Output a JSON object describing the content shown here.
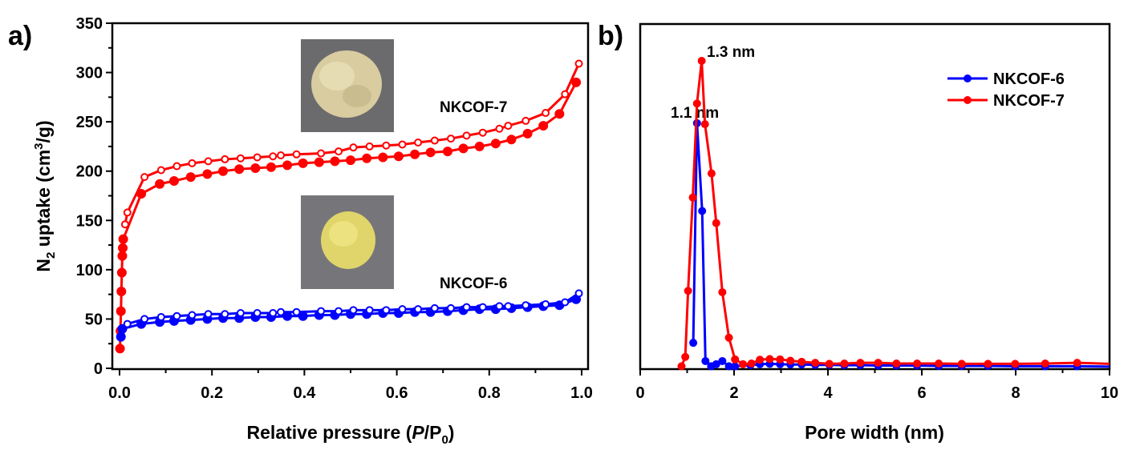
{
  "chart_data": [
    {
      "panel": "a)",
      "type": "line",
      "xlabel": "Relative pressure (P/P0)",
      "xlabel_parts": [
        "Relative pressure (",
        "P",
        "/P",
        "0",
        ")"
      ],
      "ylabel": "N2 uptake (cm3/g)",
      "ylabel_parts": [
        "N",
        "2",
        " uptake (cm",
        "3",
        "/g)"
      ],
      "xlim": [
        0,
        1.0
      ],
      "ylim": [
        0,
        350
      ],
      "xticks": [
        "0.0",
        "0.2",
        "0.4",
        "0.6",
        "0.8",
        "1.0"
      ],
      "yticks": [
        "0",
        "50",
        "100",
        "150",
        "200",
        "250",
        "300",
        "350"
      ],
      "annotations": [
        "NKCOF-7",
        "NKCOF-6"
      ],
      "insets": [
        "NKCOF-7 powder photo",
        "NKCOF-6 powder photo"
      ],
      "series": [
        {
          "name": "NKCOF-7 adsorption",
          "color": "#ff0000",
          "marker": "filled",
          "x": [
            0.001,
            0.002,
            0.003,
            0.004,
            0.005,
            0.006,
            0.007,
            0.008,
            0.047,
            0.087,
            0.118,
            0.154,
            0.19,
            0.224,
            0.259,
            0.294,
            0.328,
            0.363,
            0.397,
            0.432,
            0.466,
            0.5,
            0.535,
            0.57,
            0.604,
            0.639,
            0.673,
            0.71,
            0.744,
            0.779,
            0.814,
            0.848,
            0.883,
            0.917,
            0.952,
            0.988
          ],
          "y": [
            20,
            38,
            58,
            78,
            97,
            114,
            122,
            131,
            177,
            187,
            190,
            194,
            197,
            200,
            202,
            203,
            204,
            206,
            208,
            209,
            210,
            211,
            213,
            214,
            215,
            217,
            219,
            220,
            223,
            225,
            228,
            232,
            238,
            246,
            258,
            290
          ]
        },
        {
          "name": "NKCOF-7 desorption",
          "color": "#ff0000",
          "marker": "open",
          "x": [
            0.994,
            0.964,
            0.922,
            0.879,
            0.841,
            0.822,
            0.786,
            0.751,
            0.717,
            0.682,
            0.646,
            0.612,
            0.577,
            0.541,
            0.506,
            0.474,
            0.436,
            0.383,
            0.349,
            0.332,
            0.298,
            0.262,
            0.228,
            0.192,
            0.157,
            0.124,
            0.09,
            0.054,
            0.017,
            0.012
          ],
          "y": [
            309,
            278,
            259,
            251,
            246,
            243,
            239,
            236,
            233,
            231,
            229,
            227,
            226,
            225,
            224,
            220,
            218,
            217,
            216,
            215,
            214,
            213,
            212,
            210,
            208,
            205,
            201,
            194,
            158,
            146
          ]
        },
        {
          "name": "NKCOF-6 adsorption",
          "color": "#0000ff",
          "marker": "filled",
          "x": [
            0.003,
            0.006,
            0.047,
            0.087,
            0.118,
            0.154,
            0.19,
            0.224,
            0.259,
            0.294,
            0.328,
            0.363,
            0.397,
            0.432,
            0.466,
            0.5,
            0.535,
            0.57,
            0.604,
            0.639,
            0.673,
            0.71,
            0.744,
            0.779,
            0.814,
            0.848,
            0.883,
            0.917,
            0.952,
            0.988
          ],
          "y": [
            32,
            40,
            45,
            47,
            48,
            49,
            50,
            51,
            51,
            52,
            52,
            53,
            53,
            54,
            54,
            55,
            55,
            56,
            56,
            57,
            57,
            58,
            59,
            60,
            60,
            61,
            62,
            63,
            64,
            70
          ]
        },
        {
          "name": "NKCOF-6 desorption",
          "color": "#0000ff",
          "marker": "open",
          "x": [
            0.994,
            0.964,
            0.922,
            0.879,
            0.841,
            0.822,
            0.786,
            0.751,
            0.717,
            0.682,
            0.646,
            0.612,
            0.577,
            0.541,
            0.506,
            0.474,
            0.436,
            0.383,
            0.349,
            0.332,
            0.298,
            0.262,
            0.228,
            0.192,
            0.157,
            0.124,
            0.09,
            0.054,
            0.017
          ],
          "y": [
            76,
            67,
            65,
            64,
            63,
            63,
            62,
            62,
            61,
            61,
            60,
            60,
            59,
            59,
            59,
            58,
            58,
            57,
            57,
            56,
            56,
            56,
            55,
            55,
            54,
            53,
            52,
            50,
            45
          ]
        }
      ]
    },
    {
      "panel": "b)",
      "type": "line",
      "xlabel": "Pore width (nm)",
      "ylabel": "",
      "xlim": [
        0,
        10
      ],
      "ylim": [
        0,
        1
      ],
      "xticks": [
        "0",
        "2",
        "4",
        "6",
        "8",
        "10"
      ],
      "annotations": [
        "1.3 nm",
        "1.1 nm"
      ],
      "legend_position": "top-right",
      "series": [
        {
          "name": "NKCOF-6",
          "color": "#0000ff",
          "x": [
            1.13,
            1.21,
            1.32,
            1.39,
            1.51,
            1.62,
            1.75,
            1.89,
            2.02,
            2.35,
            2.55,
            2.76,
            2.98,
            3.2,
            3.44,
            3.73,
            4.03,
            4.35,
            4.69,
            5.07,
            5.46,
            5.9,
            6.36,
            6.85,
            7.41,
            7.99,
            8.63,
            9.31,
            10
          ],
          "y": [
            0.074,
            0.712,
            0.457,
            0.021,
            0.006,
            0.012,
            0.021,
            0.006,
            0.006,
            0.009,
            0.012,
            0.013,
            0.012,
            0.011,
            0.011,
            0.01,
            0.01,
            0.009,
            0.009,
            0.008,
            0.008,
            0.008,
            0.007,
            0.007,
            0.007,
            0.006,
            0.006,
            0.006,
            0.005
          ]
        },
        {
          "name": "NKCOF-7",
          "color": "#ff0000",
          "x": [
            0.88,
            0.96,
            1.02,
            1.12,
            1.21,
            1.31,
            1.38,
            1.52,
            1.62,
            1.75,
            1.89,
            2.02,
            2.19,
            2.37,
            2.55,
            2.76,
            2.98,
            3.2,
            3.44,
            3.73,
            4.03,
            4.35,
            4.69,
            5.07,
            5.46,
            5.9,
            6.36,
            6.85,
            7.41,
            7.99,
            8.63,
            9.31,
            10
          ],
          "y": [
            0.006,
            0.033,
            0.225,
            0.496,
            0.769,
            0.893,
            0.709,
            0.566,
            0.422,
            0.221,
            0.089,
            0.026,
            0.012,
            0.014,
            0.025,
            0.027,
            0.026,
            0.022,
            0.019,
            0.016,
            0.013,
            0.014,
            0.016,
            0.016,
            0.014,
            0.014,
            0.014,
            0.013,
            0.013,
            0.013,
            0.014,
            0.016,
            0.013
          ]
        }
      ]
    }
  ]
}
